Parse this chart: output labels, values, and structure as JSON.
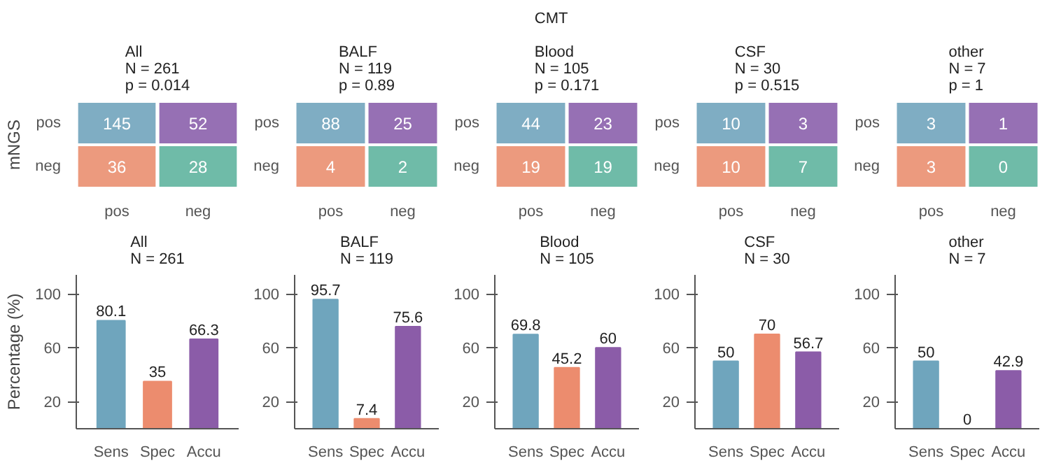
{
  "chart_data": [
    {
      "type": "heatmap",
      "title": "All",
      "subtitle": "N = 261",
      "annotations": [
        "p = 0.014"
      ],
      "ylabel": "mNGS",
      "data_labels": true,
      "categories": [
        "pos",
        "neg"
      ],
      "y_categories": [
        "pos",
        "neg"
      ],
      "cells": [
        [
          145,
          52
        ],
        [
          36,
          28
        ]
      ],
      "colors": [
        "#7fadc3",
        "#9670b4",
        "#ec9a7e",
        "#6fbba8"
      ],
      "grid": false
    },
    {
      "type": "heatmap",
      "title": "BALF",
      "subtitle": "N = 119",
      "data_labels": true,
      "annotations": [
        "p = 0.89"
      ],
      "categories": [
        "pos",
        "neg"
      ],
      "y_categories": [
        "pos",
        "neg"
      ],
      "cells": [
        [
          88,
          25
        ],
        [
          4,
          2
        ]
      ],
      "colors": [
        "#7fadc3",
        "#9670b4",
        "#ec9a7e",
        "#6fbba8"
      ],
      "grid": false
    },
    {
      "type": "heatmap",
      "title": "Blood",
      "subtitle": "N = 105",
      "xlabel": "CMT",
      "data_labels": true,
      "annotations": [
        "p = 0.171"
      ],
      "categories": [
        "pos",
        "neg"
      ],
      "y_categories": [
        "pos",
        "neg"
      ],
      "cells": [
        [
          44,
          23
        ],
        [
          19,
          19
        ]
      ],
      "colors": [
        "#7fadc3",
        "#9670b4",
        "#ec9a7e",
        "#6fbba8"
      ],
      "grid": false
    },
    {
      "type": "heatmap",
      "title": "CSF",
      "subtitle": "N = 30",
      "data_labels": true,
      "annotations": [
        "p = 0.515"
      ],
      "categories": [
        "pos",
        "neg"
      ],
      "y_categories": [
        "pos",
        "neg"
      ],
      "cells": [
        [
          10,
          3
        ],
        [
          10,
          7
        ]
      ],
      "colors": [
        "#7fadc3",
        "#9670b4",
        "#ec9a7e",
        "#6fbba8"
      ],
      "grid": false
    },
    {
      "type": "heatmap",
      "title": "other",
      "subtitle": "N = 7",
      "data_labels": true,
      "annotations": [
        "p = 1"
      ],
      "categories": [
        "pos",
        "neg"
      ],
      "y_categories": [
        "pos",
        "neg"
      ],
      "cells": [
        [
          3,
          1
        ],
        [
          3,
          0
        ]
      ],
      "colors": [
        "#7fadc3",
        "#9670b4",
        "#ec9a7e",
        "#6fbba8"
      ],
      "grid": false
    },
    {
      "type": "bar",
      "title": "All",
      "subtitle": "N = 261",
      "ylabel": "Percentage (%)",
      "categories": [
        "Sens",
        "Spec",
        "Accu"
      ],
      "values": [
        80.1,
        35,
        66.3
      ],
      "colors": [
        "#6fa5bd",
        "#ec8c6e",
        "#8b5ca8"
      ],
      "data_labels": true,
      "ylim": [
        0,
        114
      ],
      "yticks": [
        20,
        60,
        100
      ],
      "grid": false
    },
    {
      "type": "bar",
      "title": "BALF",
      "subtitle": "N = 119",
      "categories": [
        "Sens",
        "Spec",
        "Accu"
      ],
      "values": [
        95.7,
        7.4,
        75.6
      ],
      "colors": [
        "#6fa5bd",
        "#ec8c6e",
        "#8b5ca8"
      ],
      "data_labels": true,
      "ylim": [
        0,
        114
      ],
      "yticks": [
        20,
        60,
        100
      ],
      "grid": false
    },
    {
      "type": "bar",
      "title": "Blood",
      "subtitle": "N = 105",
      "categories": [
        "Sens",
        "Spec",
        "Accu"
      ],
      "values": [
        69.8,
        45.2,
        60
      ],
      "colors": [
        "#6fa5bd",
        "#ec8c6e",
        "#8b5ca8"
      ],
      "data_labels": true,
      "ylim": [
        0,
        114
      ],
      "yticks": [
        20,
        60,
        100
      ],
      "grid": false
    },
    {
      "type": "bar",
      "title": "CSF",
      "subtitle": "N = 30",
      "categories": [
        "Sens",
        "Spec",
        "Accu"
      ],
      "values": [
        50,
        70,
        56.7
      ],
      "colors": [
        "#6fa5bd",
        "#ec8c6e",
        "#8b5ca8"
      ],
      "data_labels": true,
      "ylim": [
        0,
        114
      ],
      "yticks": [
        20,
        60,
        100
      ],
      "grid": false
    },
    {
      "type": "bar",
      "title": "other",
      "subtitle": "N = 7",
      "categories": [
        "Sens",
        "Spec",
        "Accu"
      ],
      "values": [
        50,
        0,
        42.9
      ],
      "colors": [
        "#6fa5bd",
        "#ec8c6e",
        "#8b5ca8"
      ],
      "data_labels": true,
      "ylim": [
        0,
        114
      ],
      "yticks": [
        20,
        60,
        100
      ],
      "grid": false
    }
  ]
}
